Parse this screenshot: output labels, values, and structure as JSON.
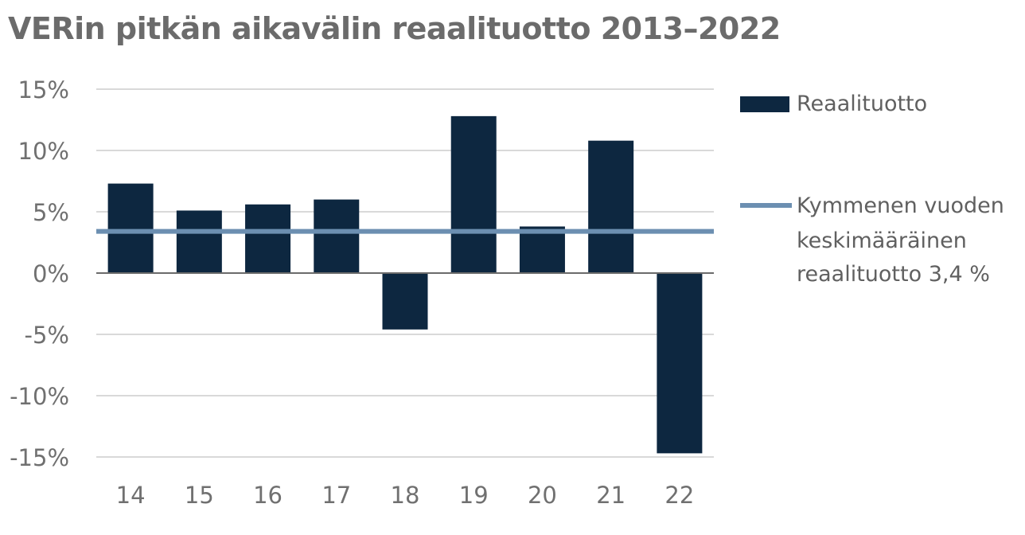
{
  "title": "VERin pitkän aikavälin reaalituotto 2013–2022",
  "colors": {
    "bar": "#0d2740",
    "avg_line": "#6c8fb1",
    "grid": "#d9d9d9",
    "zero_axis": "#6b6b6b"
  },
  "legend": {
    "bar_label": "Reaalituotto",
    "line_label_1": "Kymmenen vuoden",
    "line_label_2": "keskimääräinen",
    "line_label_3": "reaalituotto 3,4 %"
  },
  "chart_data": {
    "type": "bar",
    "title": "VERin pitkän aikavälin reaalituotto 2013–2022",
    "categories": [
      "14",
      "15",
      "16",
      "17",
      "18",
      "19",
      "20",
      "21",
      "22"
    ],
    "series": [
      {
        "name": "Reaalituotto",
        "values": [
          7.3,
          5.1,
          5.6,
          6.0,
          -4.6,
          12.8,
          3.8,
          10.8,
          -14.7
        ]
      }
    ],
    "reference_line": {
      "name": "Kymmenen vuoden keskimääräinen reaalituotto 3,4 %",
      "value": 3.4
    },
    "ylim": [
      -15,
      15
    ],
    "yticks": [
      15,
      10,
      5,
      0,
      -5,
      -10,
      -15
    ],
    "ytick_labels": [
      "15%",
      "10%",
      "5%",
      "0%",
      "-5%",
      "-10%",
      "-15%"
    ],
    "grid": true,
    "legend_position": "right"
  }
}
